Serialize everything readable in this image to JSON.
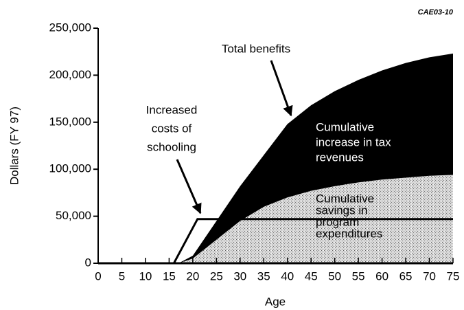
{
  "chart_data": {
    "type": "area",
    "code": "CAE03-10",
    "xlabel": "Age",
    "ylabel": "Dollars (FY 97)",
    "x": [
      0,
      15,
      17,
      20,
      25,
      30,
      35,
      40,
      45,
      50,
      55,
      60,
      65,
      70,
      75
    ],
    "series": [
      {
        "name": "Cumulative savings in program expenditures",
        "color": "#c8c8c8",
        "values": [
          0,
          0,
          0,
          5000,
          25000,
          45000,
          60000,
          70000,
          77000,
          82000,
          86000,
          89000,
          91000,
          93000,
          94000
        ]
      },
      {
        "name": "Cumulative increase in tax revenues",
        "color": "#000000",
        "values": [
          0,
          0,
          0,
          3000,
          20000,
          37000,
          55000,
          78000,
          91000,
          101000,
          109000,
          116000,
          122000,
          126000,
          129000
        ]
      }
    ],
    "line": {
      "name": "Increased costs of schooling",
      "color": "#000000",
      "x": [
        0,
        16,
        21,
        75
      ],
      "values": [
        0,
        0,
        47000,
        47000
      ]
    },
    "annotations": [
      {
        "lines": [
          "Total benefits"
        ]
      },
      {
        "lines": [
          "Increased",
          "costs of",
          "schooling"
        ]
      },
      {
        "lines": [
          "Cumulative",
          "increase in tax",
          "revenues"
        ]
      },
      {
        "lines": [
          "Cumulative",
          "savings in",
          "program",
          "expenditures"
        ]
      }
    ],
    "xlim": [
      0,
      75
    ],
    "xticks": [
      0,
      5,
      10,
      15,
      20,
      25,
      30,
      35,
      40,
      45,
      50,
      55,
      60,
      65,
      70,
      75
    ],
    "ylim": [
      0,
      250000
    ],
    "yticks": [
      0,
      {
        "value": 50000,
        "label": "50,000"
      },
      {
        "value": 100000,
        "label": "100,000"
      },
      {
        "value": 150000,
        "label": "150,000"
      },
      {
        "value": 200000,
        "label": "200,000"
      },
      {
        "value": 250000,
        "label": "250,000"
      }
    ]
  }
}
